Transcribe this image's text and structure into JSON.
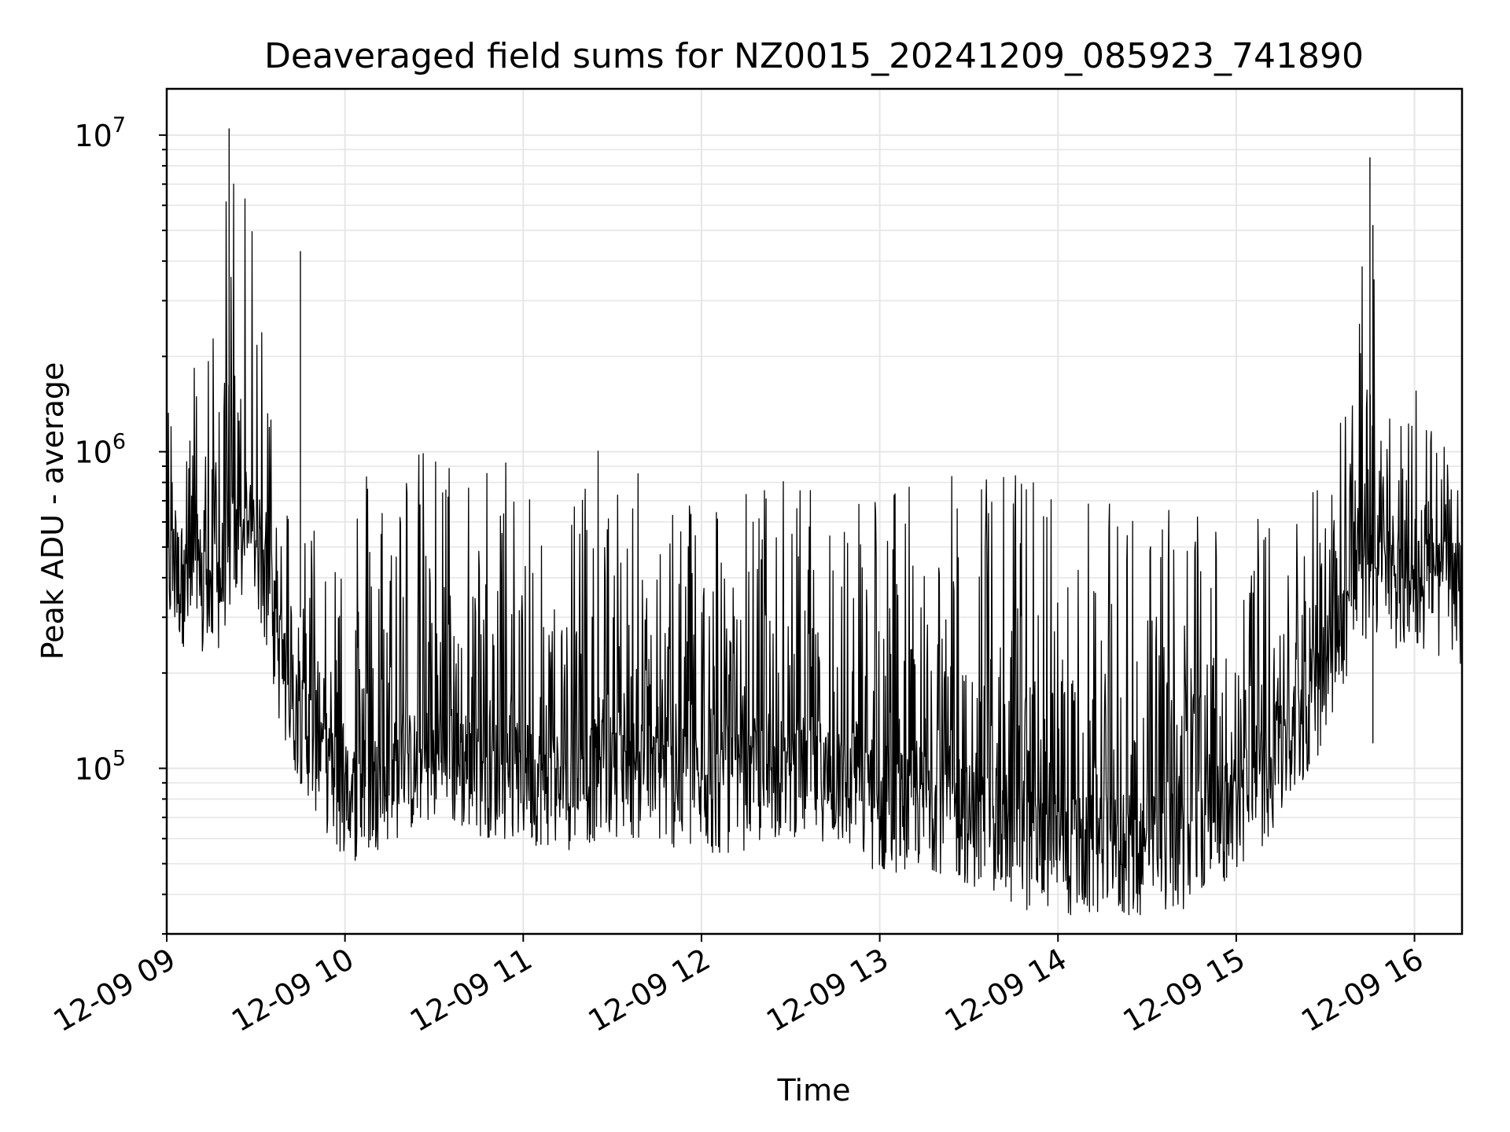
{
  "chart_data": {
    "type": "line",
    "title": "Deaveraged field sums for NZ0015_20241209_085923_741890",
    "xlabel": "Time",
    "ylabel": "Peak ADU - average",
    "x_range": [
      "12-09 09:00",
      "12-09 16:16"
    ],
    "ylim": [
      30000,
      14000000
    ],
    "yscale": "log",
    "grid": true,
    "line_color": "#000000",
    "grid_color": "#e6e6e6",
    "x_ticks": [
      "12-09 09",
      "12-09 10",
      "12-09 11",
      "12-09 12",
      "12-09 13",
      "12-09 14",
      "12-09 15",
      "12-09 16"
    ],
    "y_ticks": [
      {
        "base": "10",
        "exp": "5",
        "value": 100000
      },
      {
        "base": "10",
        "exp": "6",
        "value": 1000000
      },
      {
        "base": "10",
        "exp": "7",
        "value": 10000000
      }
    ],
    "series": [
      {
        "x": [
          "09:00",
          "09:15",
          "09:21",
          "09:30",
          "09:40",
          "09:52",
          "10:00",
          "10:15",
          "10:30",
          "10:45",
          "11:00",
          "11:15",
          "11:30",
          "11:45",
          "12:00",
          "12:15",
          "12:30",
          "12:45",
          "13:00",
          "13:15",
          "13:30",
          "13:45",
          "14:00",
          "14:15",
          "14:30",
          "14:45",
          "15:00",
          "15:10",
          "15:20",
          "15:30",
          "15:40",
          "15:45",
          "15:50",
          "16:00",
          "16:16"
        ],
        "baseline": [
          450000,
          320000,
          500000,
          550000,
          180000,
          110000,
          80000,
          95000,
          110000,
          100000,
          95000,
          90000,
          100000,
          95000,
          85000,
          90000,
          100000,
          95000,
          75000,
          80000,
          70000,
          60000,
          55000,
          55000,
          55000,
          60000,
          75000,
          95000,
          130000,
          200000,
          380000,
          420000,
          400000,
          380000,
          350000
        ],
        "peak": [
          1500000,
          2500000,
          10500000,
          4600000,
          800000,
          700000,
          1000000,
          1050000,
          1050000,
          1050000,
          1050000,
          1050000,
          1000000,
          800000,
          900000,
          800000,
          850000,
          700000,
          1000000,
          700000,
          950000,
          950000,
          800000,
          700000,
          700000,
          700000,
          800000,
          600000,
          700000,
          1000000,
          2000000,
          8500000,
          1700000,
          2000000,
          700000
        ]
      }
    ]
  }
}
